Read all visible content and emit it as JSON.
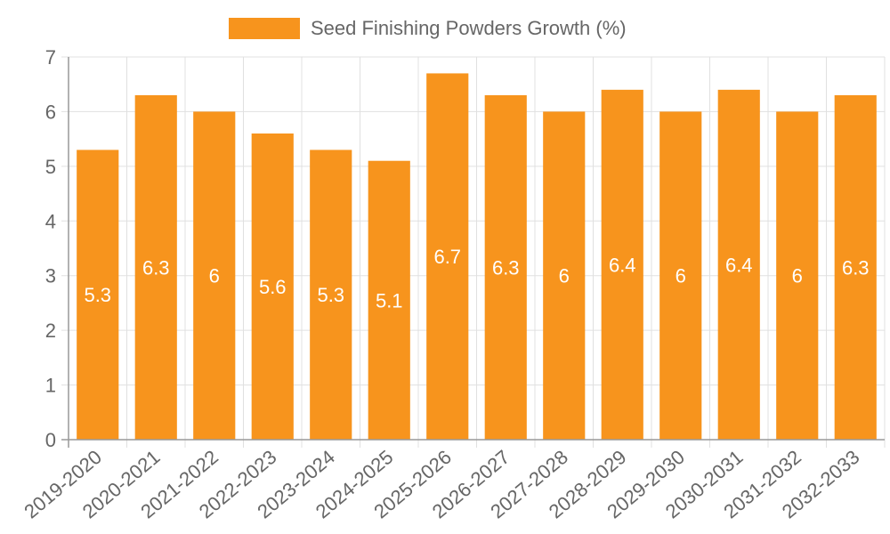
{
  "chart_data": {
    "type": "bar",
    "title": "",
    "legend": [
      {
        "label": "Seed Finishing Powders Growth (%)",
        "color": "#f7941d"
      }
    ],
    "legend_position": "top",
    "categories": [
      "2019-2020",
      "2020-2021",
      "2021-2022",
      "2022-2023",
      "2023-2024",
      "2024-2025",
      "2025-2026",
      "2026-2027",
      "2027-2028",
      "2028-2029",
      "2029-2030",
      "2030-2031",
      "2031-2032",
      "2032-2033"
    ],
    "series": [
      {
        "name": "Seed Finishing Powders Growth (%)",
        "values": [
          5.3,
          6.3,
          6,
          5.6,
          5.3,
          5.1,
          6.7,
          6.3,
          6,
          6.4,
          6,
          6.4,
          6,
          6.3
        ],
        "color": "#f7941d"
      }
    ],
    "data_labels": [
      "5.3",
      "6.3",
      "6",
      "5.6",
      "5.3",
      "5.1",
      "6.7",
      "6.3",
      "6",
      "6.4",
      "6",
      "6.4",
      "6",
      "6.3"
    ],
    "xlabel": "",
    "ylabel": "",
    "ylim": [
      0,
      7
    ],
    "yticks": [
      "0",
      "1",
      "2",
      "3",
      "4",
      "5",
      "6",
      "7"
    ],
    "grid": true
  }
}
